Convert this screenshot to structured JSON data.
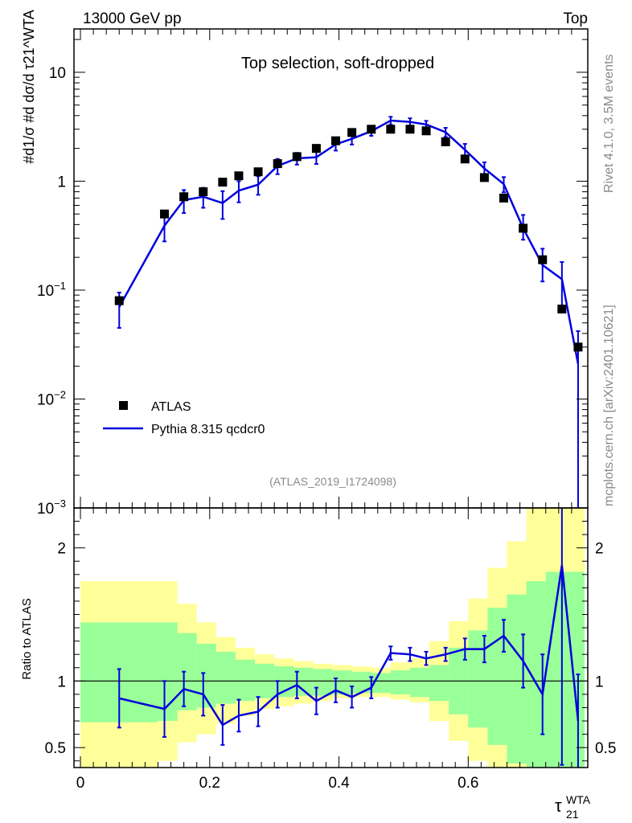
{
  "header": {
    "energy_label": "13000 GeV pp",
    "process_label": "Top"
  },
  "side_labels": {
    "rivet": "Rivet 4.1.0,  3.5M events",
    "source": "mcplots.cern.ch [arXiv:2401.10621]"
  },
  "colors": {
    "atlas": "#000000",
    "pythia": "#0000dd",
    "band_inner": "#99ff99",
    "band_outer": "#ffff99"
  },
  "chart_data": [
    {
      "type": "scatter",
      "panel": "main",
      "title": "Top selection, soft-dropped",
      "analysis_label": "(ATLAS_2019_I1724098)",
      "ylabel": "#d1/σ #d dσ/d τ21^WTA",
      "yscale": "log",
      "ylim": [
        0.001,
        25
      ],
      "xlim": [
        -0.01,
        0.785
      ],
      "y_ticks": [
        {
          "value": 0.001,
          "base": "10",
          "exp": "−3"
        },
        {
          "value": 0.01,
          "base": "10",
          "exp": "−2"
        },
        {
          "value": 0.1,
          "base": "10",
          "exp": "−1"
        },
        {
          "value": 1,
          "base": "1",
          "exp": ""
        },
        {
          "value": 10,
          "base": "10",
          "exp": ""
        }
      ],
      "legend": [
        {
          "label": "ATLAS",
          "style": "marker"
        },
        {
          "label": "Pythia 8.315 qcdcr0",
          "style": "line"
        }
      ],
      "series": [
        {
          "name": "ATLAS",
          "x": [
            0.06,
            0.13,
            0.16,
            0.19,
            0.22,
            0.245,
            0.275,
            0.305,
            0.335,
            0.365,
            0.395,
            0.42,
            0.45,
            0.48,
            0.51,
            0.535,
            0.565,
            0.595,
            0.625,
            0.655,
            0.685,
            0.715,
            0.745,
            0.77
          ],
          "y": [
            0.08,
            0.5,
            0.72,
            0.8,
            0.98,
            1.12,
            1.22,
            1.45,
            1.68,
            2.0,
            2.35,
            2.8,
            3.0,
            3.0,
            3.0,
            2.9,
            2.3,
            1.6,
            1.08,
            0.7,
            0.37,
            0.19,
            0.067,
            0.03
          ]
        },
        {
          "name": "Pythia 8.315 qcdcr0",
          "x": [
            0.06,
            0.13,
            0.16,
            0.19,
            0.22,
            0.245,
            0.275,
            0.305,
            0.335,
            0.365,
            0.395,
            0.42,
            0.45,
            0.48,
            0.51,
            0.535,
            0.565,
            0.595,
            0.625,
            0.655,
            0.685,
            0.715,
            0.745,
            0.77
          ],
          "y": [
            0.07,
            0.39,
            0.67,
            0.72,
            0.63,
            0.82,
            0.93,
            1.38,
            1.62,
            1.66,
            2.18,
            2.45,
            2.88,
            3.6,
            3.5,
            3.32,
            2.82,
            1.94,
            1.31,
            0.94,
            0.37,
            0.17,
            0.126,
            0.021
          ],
          "err_lo": [
            0.025,
            0.11,
            0.16,
            0.15,
            0.18,
            0.18,
            0.18,
            0.22,
            0.2,
            0.22,
            0.27,
            0.28,
            0.27,
            0.3,
            0.28,
            0.26,
            0.27,
            0.26,
            0.18,
            0.15,
            0.08,
            0.05,
            0.06,
            0.0209
          ],
          "err_hi": [
            0.025,
            0.12,
            0.16,
            0.15,
            0.18,
            0.18,
            0.18,
            0.22,
            0.2,
            0.22,
            0.27,
            0.28,
            0.27,
            0.3,
            0.28,
            0.26,
            0.27,
            0.26,
            0.18,
            0.15,
            0.12,
            0.07,
            0.055,
            0.021
          ]
        }
      ]
    },
    {
      "type": "line",
      "panel": "ratio",
      "ylabel": "Ratio to ATLAS",
      "xlabel": "τ21^WTA",
      "xlabel_base": "τ",
      "xlabel_sup": "WTA",
      "xlabel_sub": "21",
      "ylim": [
        0.35,
        2.3
      ],
      "xlim": [
        -0.01,
        0.785
      ],
      "x_ticks": [
        0,
        0.2,
        0.4,
        0.6
      ],
      "x_tick_labels": [
        "0",
        "0.2",
        "0.4",
        "0.6"
      ],
      "y_ticks": [
        0.5,
        1,
        2
      ],
      "y_tick_labels": [
        "0.5",
        "1",
        "2"
      ],
      "reference_line": 1,
      "bands": {
        "edges": [
          0,
          0.12,
          0.15,
          0.18,
          0.21,
          0.24,
          0.27,
          0.3,
          0.33,
          0.36,
          0.39,
          0.42,
          0.45,
          0.48,
          0.51,
          0.54,
          0.57,
          0.6,
          0.63,
          0.66,
          0.69,
          0.72,
          0.78
        ],
        "inner_lo": [
          0.69,
          0.7,
          0.78,
          0.8,
          0.83,
          0.85,
          0.87,
          0.88,
          0.89,
          0.89,
          0.9,
          0.91,
          0.91,
          0.9,
          0.88,
          0.85,
          0.75,
          0.65,
          0.52,
          0.38,
          0.35,
          0.35
        ],
        "inner_hi": [
          1.44,
          1.44,
          1.36,
          1.28,
          1.22,
          1.16,
          1.13,
          1.11,
          1.1,
          1.09,
          1.08,
          1.07,
          1.06,
          1.08,
          1.1,
          1.12,
          1.25,
          1.38,
          1.55,
          1.65,
          1.75,
          1.82
        ],
        "outer_lo": [
          0.35,
          0.4,
          0.54,
          0.6,
          0.68,
          0.74,
          0.79,
          0.81,
          0.83,
          0.85,
          0.87,
          0.88,
          0.88,
          0.86,
          0.84,
          0.7,
          0.55,
          0.4,
          0.35,
          0.35,
          0.35,
          0.35
        ],
        "outer_hi": [
          1.75,
          1.75,
          1.58,
          1.44,
          1.33,
          1.25,
          1.2,
          1.17,
          1.15,
          1.13,
          1.12,
          1.11,
          1.1,
          1.14,
          1.17,
          1.3,
          1.45,
          1.62,
          1.85,
          2.05,
          2.3,
          2.3
        ]
      },
      "series": [
        {
          "name": "Pythia 8.315 qcdcr0",
          "x": [
            0.06,
            0.13,
            0.16,
            0.19,
            0.22,
            0.245,
            0.275,
            0.305,
            0.335,
            0.365,
            0.395,
            0.42,
            0.45,
            0.48,
            0.51,
            0.535,
            0.565,
            0.595,
            0.625,
            0.655,
            0.685,
            0.715,
            0.745,
            0.77
          ],
          "values": [
            0.87,
            0.79,
            0.94,
            0.9,
            0.67,
            0.74,
            0.77,
            0.9,
            0.97,
            0.85,
            0.93,
            0.88,
            0.95,
            1.21,
            1.2,
            1.17,
            1.2,
            1.24,
            1.24,
            1.34,
            1.15,
            0.9,
            1.87,
            0.7
          ],
          "err_lo": [
            0.22,
            0.21,
            0.13,
            0.16,
            0.15,
            0.12,
            0.11,
            0.1,
            0.1,
            0.1,
            0.09,
            0.08,
            0.08,
            0.05,
            0.05,
            0.05,
            0.05,
            0.08,
            0.1,
            0.12,
            0.2,
            0.3,
            1.5,
            0.35
          ],
          "err_hi": [
            0.22,
            0.21,
            0.13,
            0.16,
            0.15,
            0.12,
            0.11,
            0.1,
            0.1,
            0.1,
            0.09,
            0.08,
            0.08,
            0.05,
            0.05,
            0.05,
            0.05,
            0.08,
            0.1,
            0.12,
            0.2,
            0.3,
            0.5,
            0.35
          ]
        }
      ]
    }
  ]
}
